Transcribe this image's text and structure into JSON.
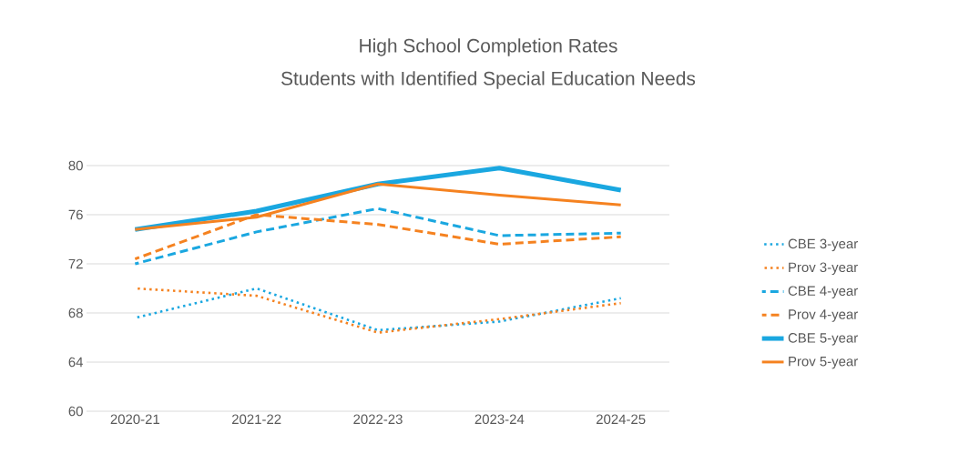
{
  "chart_data": {
    "type": "line",
    "title": "High School Completion Rates",
    "subtitle": "Students with Identified Special Education Needs",
    "categories": [
      "2020-21",
      "2021-22",
      "2022-23",
      "2023-24",
      "2024-25"
    ],
    "series": [
      {
        "name": "CBE 3-year",
        "color": "#1aa7e0",
        "line_style": "dotted",
        "values": [
          67.6,
          70.0,
          66.6,
          67.3,
          69.2
        ]
      },
      {
        "name": "Prov 3-year",
        "color": "#f58220",
        "line_style": "dotted",
        "values": [
          70.0,
          69.4,
          66.4,
          67.5,
          68.8
        ]
      },
      {
        "name": "CBE 4-year",
        "color": "#1aa7e0",
        "line_style": "dashed",
        "values": [
          72.0,
          74.6,
          76.5,
          74.3,
          74.5
        ]
      },
      {
        "name": "Prov 4-year",
        "color": "#f58220",
        "line_style": "dashed",
        "values": [
          72.4,
          76.0,
          75.2,
          73.6,
          74.2
        ]
      },
      {
        "name": "CBE 5-year",
        "color": "#1aa7e0",
        "line_style": "solid",
        "values": [
          74.8,
          76.3,
          78.5,
          79.8,
          78.0
        ]
      },
      {
        "name": "Prov 5-year",
        "color": "#f58220",
        "line_style": "solid",
        "values": [
          74.8,
          75.8,
          78.5,
          77.6,
          76.8
        ]
      }
    ],
    "ylim": [
      60,
      80
    ],
    "yticks": [
      60,
      64,
      68,
      72,
      76,
      80
    ],
    "grid": "y",
    "legend": "right",
    "marker": "none"
  }
}
